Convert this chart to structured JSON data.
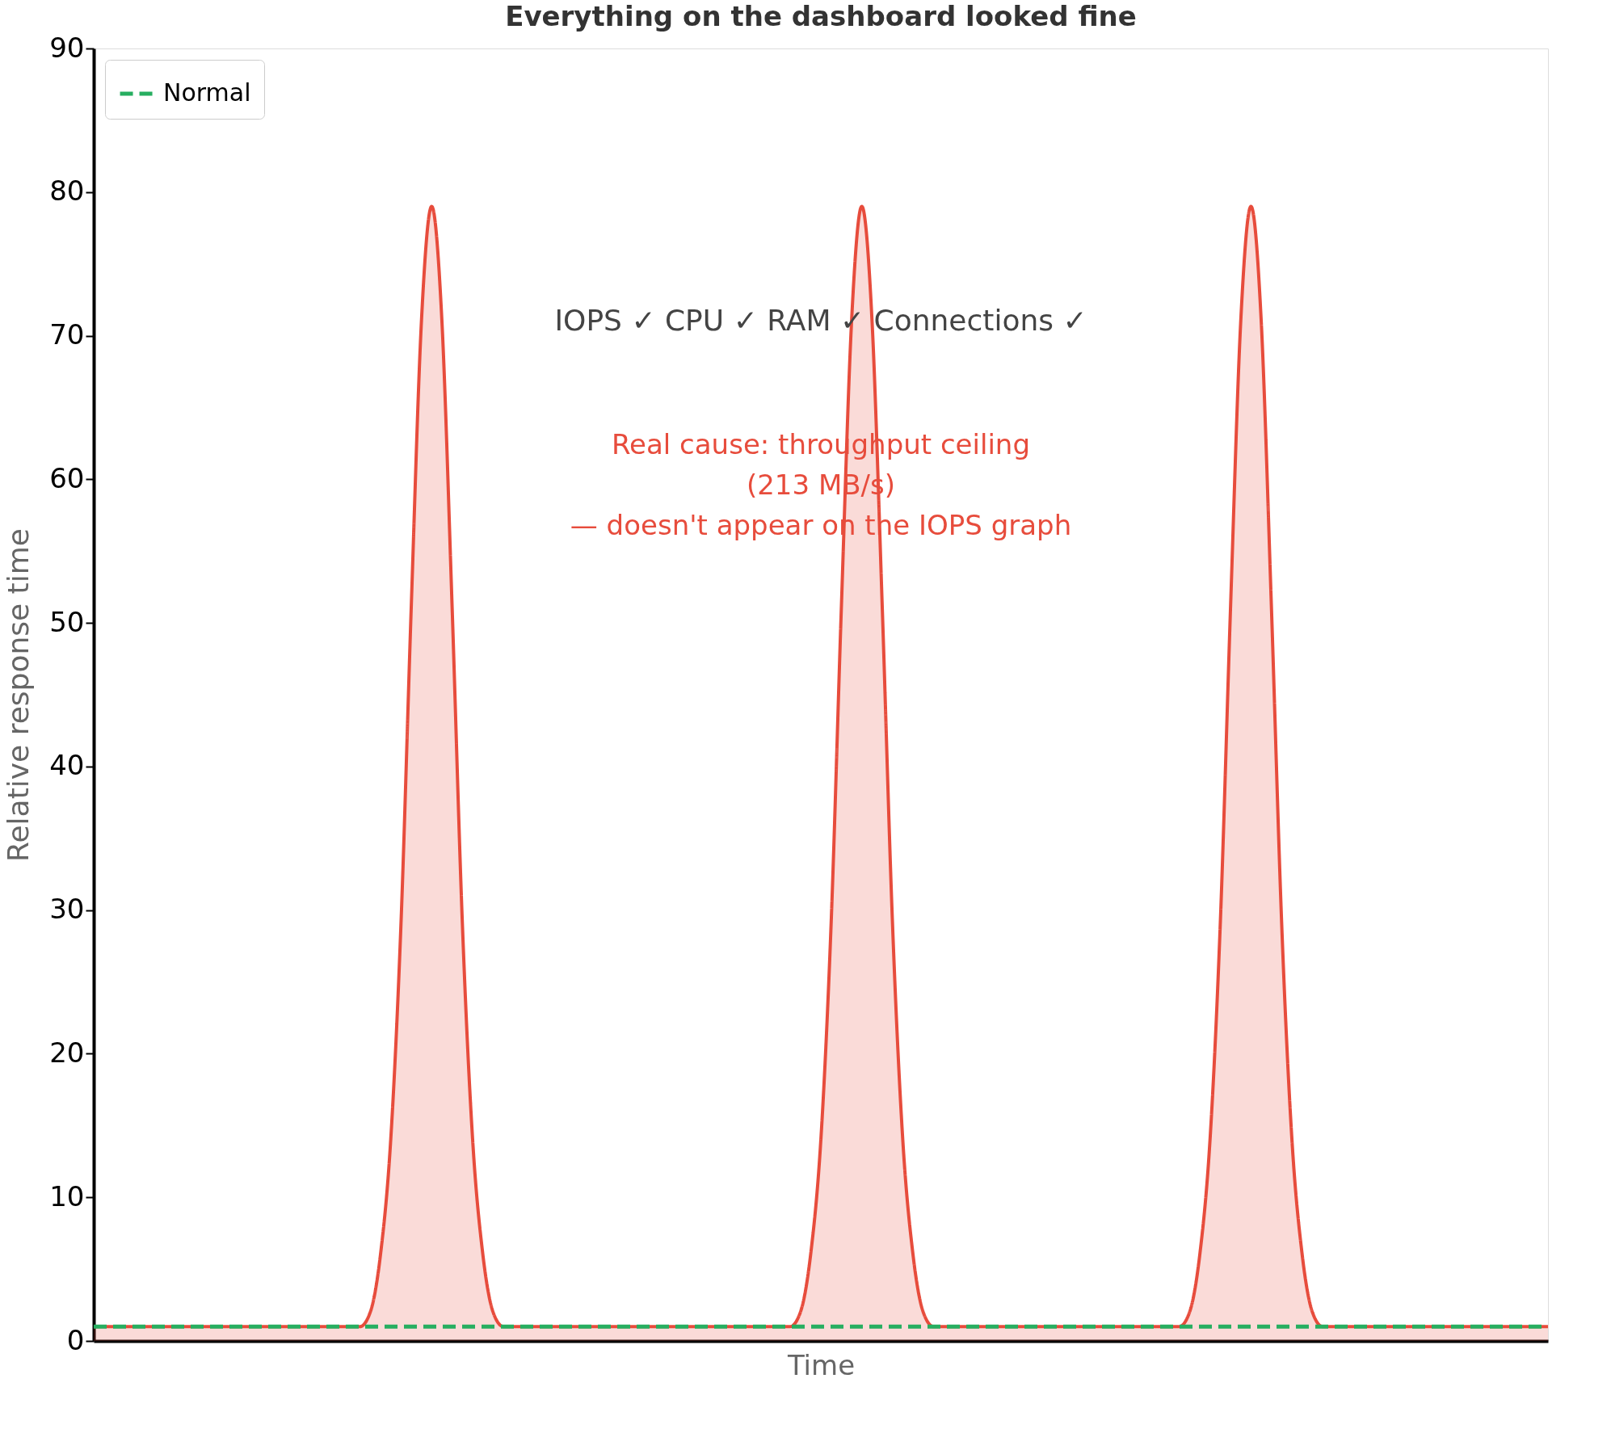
{
  "chart_data": {
    "type": "area",
    "title": "Everything on the dashboard looked fine",
    "xlabel": "Time",
    "ylabel": "Relative response time",
    "categories": [
      null,
      null,
      null,
      null,
      null,
      null,
      null,
      null,
      null,
      null,
      null,
      null,
      null,
      null,
      null,
      null,
      null,
      null,
      null,
      null,
      null,
      null,
      null,
      null,
      null,
      null,
      null,
      null,
      null,
      null,
      null,
      null,
      null,
      null,
      null,
      null,
      null,
      null,
      null,
      null,
      null,
      null,
      null,
      null,
      null,
      null,
      null,
      null,
      null,
      null,
      null,
      null,
      null,
      null,
      null,
      null,
      null,
      null,
      null,
      null,
      null,
      null,
      null,
      null,
      null,
      null,
      null,
      null,
      null,
      null,
      null,
      null,
      null,
      null,
      null,
      null,
      null,
      null,
      null,
      null,
      null,
      null,
      null,
      null,
      null,
      null,
      null,
      null,
      null,
      null,
      null,
      null,
      null,
      null,
      null,
      null,
      null,
      null,
      null,
      null,
      null,
      null,
      null,
      null,
      null,
      null,
      null,
      null,
      null,
      null,
      null,
      null,
      null,
      null,
      null,
      null,
      null,
      null,
      null,
      null,
      null,
      null,
      null,
      null,
      null,
      null,
      null,
      null,
      null,
      null,
      null,
      null,
      null,
      null,
      null,
      null,
      null,
      null,
      null,
      null,
      null,
      null,
      null
    ],
    "series": [
      {
        "color": "#e74c3c",
        "values": [
          1,
          1,
          1,
          1,
          1,
          1,
          1,
          1,
          1,
          1,
          1,
          1,
          1,
          1,
          1,
          1,
          1,
          1,
          1,
          1,
          1,
          1,
          1,
          1,
          1,
          1,
          1,
          2,
          6,
          14,
          29,
          51,
          71,
          79,
          71,
          51,
          29,
          14,
          6,
          2,
          1,
          1,
          1,
          1,
          1,
          1,
          1,
          1,
          1,
          1,
          1,
          1,
          1,
          1,
          1,
          1,
          1,
          1,
          1,
          1,
          1,
          1,
          1,
          1,
          1,
          1,
          1,
          1,
          1,
          2,
          6,
          14,
          29,
          51,
          71,
          79,
          71,
          51,
          29,
          14,
          6,
          2,
          1,
          1,
          1,
          1,
          1,
          1,
          1,
          1,
          1,
          1,
          1,
          1,
          1,
          1,
          1,
          1,
          1,
          1,
          1,
          1,
          1,
          1,
          1,
          1,
          1,
          2,
          6,
          14,
          29,
          51,
          71,
          79,
          71,
          51,
          29,
          14,
          6,
          2,
          1,
          1,
          1,
          1,
          1,
          1,
          1,
          1,
          1,
          1,
          1,
          1,
          1,
          1,
          1,
          1,
          1,
          1,
          1,
          1,
          1,
          1,
          1
        ]
      },
      {
        "type": "line",
        "name": "Normal",
        "color": "#27ae60",
        "line_style": "dashed",
        "values": [
          1,
          1,
          1,
          1,
          1,
          1,
          1,
          1,
          1,
          1,
          1,
          1,
          1,
          1,
          1,
          1,
          1,
          1,
          1,
          1,
          1,
          1,
          1,
          1,
          1,
          1,
          1,
          1,
          1,
          1,
          1,
          1,
          1,
          1,
          1,
          1,
          1,
          1,
          1,
          1,
          1,
          1,
          1,
          1,
          1,
          1,
          1,
          1,
          1,
          1,
          1,
          1,
          1,
          1,
          1,
          1,
          1,
          1,
          1,
          1,
          1,
          1,
          1,
          1,
          1,
          1,
          1,
          1,
          1,
          1,
          1,
          1,
          1,
          1,
          1,
          1,
          1,
          1,
          1,
          1,
          1,
          1,
          1,
          1,
          1,
          1,
          1,
          1,
          1,
          1,
          1,
          1,
          1,
          1,
          1,
          1,
          1,
          1,
          1,
          1,
          1,
          1,
          1,
          1,
          1,
          1,
          1,
          1,
          1,
          1,
          1,
          1,
          1,
          1,
          1,
          1,
          1,
          1,
          1,
          1,
          1,
          1,
          1,
          1,
          1,
          1,
          1,
          1,
          1,
          1,
          1,
          1,
          1,
          1,
          1,
          1,
          1,
          1,
          1,
          1,
          1,
          1,
          1
        ]
      }
    ],
    "ylim": [
      0,
      90
    ],
    "yticks": [
      0,
      10,
      20,
      30,
      40,
      50,
      60,
      70,
      80,
      90
    ],
    "tick_labels": "y",
    "legend": "top left",
    "annotations": [
      "IOPS ✓   CPU ✓   RAM ✓   Connections ✓",
      "Real cause: throughput ceiling\n(213 MB/s)\n— doesn't appear on the IOPS graph"
    ]
  }
}
